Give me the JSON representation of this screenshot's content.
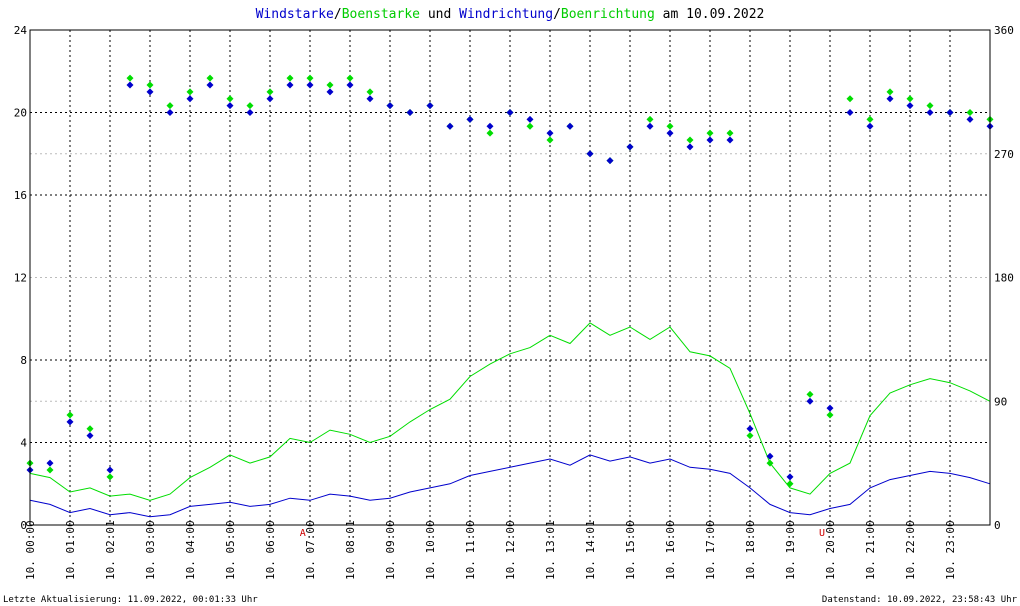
{
  "title": {
    "part1": "Windstarke",
    "sep1": "/",
    "part2": "Boenstarke",
    "mid": " und ",
    "part3": "Windrichtung",
    "sep2": "/",
    "part4": "Boenrichtung",
    "tail": " am 10.09.2022"
  },
  "footer": {
    "left": "Letzte Aktualisierung: 11.09.2022, 00:01:33 Uhr",
    "right": "Datenstand: 10.09.2022, 23:58:43 Uhr"
  },
  "colors": {
    "wind": "#0000cc",
    "gust": "#00dd00",
    "grid": "#000000",
    "marker": "#cc0000"
  },
  "chart_data": {
    "type": "line",
    "grid": true,
    "xlim": [
      0,
      24
    ],
    "ylim_left": [
      0,
      24
    ],
    "ylim_right": [
      0,
      360
    ],
    "left_ticks": [
      "0",
      "4",
      "8",
      "12",
      "16",
      "20",
      "24"
    ],
    "right_ticks": [
      "0",
      "90",
      "180",
      "270",
      "360"
    ],
    "x_ticks": [
      "10. 00:00",
      "10. 01:00",
      "10. 02:01",
      "10. 03:00",
      "10. 04:00",
      "10. 05:00",
      "10. 06:00",
      "10. 07:00",
      "10. 08:01",
      "10. 09:00",
      "10. 10:00",
      "10. 11:00",
      "10. 12:00",
      "10. 13:01",
      "10. 14:01",
      "10. 15:00",
      "10. 16:00",
      "10. 17:00",
      "10. 18:00",
      "10. 19:00",
      "10. 20:00",
      "10. 21:00",
      "10. 22:00",
      "10. 23:00"
    ],
    "markers": [
      {
        "label": "A",
        "hour": 6.82
      },
      {
        "label": "U",
        "hour": 19.8
      }
    ],
    "series": [
      {
        "name": "Windstarke",
        "unit": "left",
        "hours": [
          0,
          0.5,
          1,
          1.5,
          2,
          2.5,
          3,
          3.5,
          4,
          4.5,
          5,
          5.5,
          6,
          6.5,
          7,
          7.5,
          8,
          8.5,
          9,
          9.5,
          10,
          10.5,
          11,
          11.5,
          12,
          12.5,
          13,
          13.5,
          14,
          14.5,
          15,
          15.5,
          16,
          16.5,
          17,
          17.5,
          18,
          18.5,
          19,
          19.5,
          20,
          20.5,
          21,
          21.5,
          22,
          22.5,
          23,
          23.5,
          24
        ],
        "values": [
          1.2,
          1.0,
          0.6,
          0.8,
          0.5,
          0.6,
          0.4,
          0.5,
          0.9,
          1.0,
          1.1,
          0.9,
          1.0,
          1.3,
          1.2,
          1.5,
          1.4,
          1.2,
          1.3,
          1.6,
          1.8,
          2.0,
          2.4,
          2.6,
          2.8,
          3.0,
          3.2,
          2.9,
          3.4,
          3.1,
          3.3,
          3.0,
          3.2,
          2.8,
          2.7,
          2.5,
          1.8,
          1.0,
          0.6,
          0.5,
          0.8,
          1.0,
          1.8,
          2.2,
          2.4,
          2.6,
          2.5,
          2.3,
          2.0
        ]
      },
      {
        "name": "Boenstarke",
        "unit": "left",
        "hours": [
          0,
          0.5,
          1,
          1.5,
          2,
          2.5,
          3,
          3.5,
          4,
          4.5,
          5,
          5.5,
          6,
          6.5,
          7,
          7.5,
          8,
          8.5,
          9,
          9.5,
          10,
          10.5,
          11,
          11.5,
          12,
          12.5,
          13,
          13.5,
          14,
          14.5,
          15,
          15.5,
          16,
          16.5,
          17,
          17.5,
          18,
          18.5,
          19,
          19.5,
          20,
          20.5,
          21,
          21.5,
          22,
          22.5,
          23,
          23.5,
          24
        ],
        "values": [
          2.5,
          2.3,
          1.6,
          1.8,
          1.4,
          1.5,
          1.2,
          1.5,
          2.3,
          2.8,
          3.4,
          3.0,
          3.3,
          4.2,
          4.0,
          4.6,
          4.4,
          4.0,
          4.3,
          5.0,
          5.6,
          6.1,
          7.2,
          7.8,
          8.3,
          8.6,
          9.2,
          8.8,
          9.8,
          9.2,
          9.6,
          9.0,
          9.6,
          8.4,
          8.2,
          7.6,
          5.4,
          3.0,
          1.8,
          1.5,
          2.5,
          3.0,
          5.3,
          6.4,
          6.8,
          7.1,
          6.9,
          6.5,
          6.0
        ]
      },
      {
        "name": "Windrichtung",
        "unit": "right",
        "hours": [
          0,
          0.5,
          1,
          1.5,
          2,
          2.5,
          3,
          3.5,
          4,
          4.5,
          5,
          5.5,
          6,
          6.5,
          7,
          7.5,
          8,
          8.5,
          9,
          9.5,
          10,
          10.5,
          11,
          11.5,
          12,
          12.5,
          13,
          13.5,
          14,
          14.5,
          15,
          15.5,
          16,
          16.5,
          17,
          17.5,
          18,
          18.5,
          19,
          19.5,
          20,
          20.5,
          21,
          21.5,
          22,
          22.5,
          23,
          23.5,
          24
        ],
        "values": [
          40,
          45,
          75,
          65,
          40,
          320,
          315,
          300,
          310,
          320,
          305,
          300,
          310,
          320,
          320,
          315,
          320,
          310,
          305,
          300,
          305,
          290,
          295,
          290,
          300,
          295,
          285,
          290,
          270,
          265,
          275,
          290,
          285,
          275,
          280,
          280,
          70,
          50,
          35,
          90,
          85,
          300,
          290,
          310,
          305,
          300,
          300,
          295,
          290
        ]
      },
      {
        "name": "Boenrichtung",
        "unit": "right",
        "hours": [
          0,
          0.5,
          1,
          1.5,
          2,
          2.5,
          3,
          3.5,
          4,
          4.5,
          5,
          5.5,
          6,
          6.5,
          7,
          7.5,
          8,
          8.5,
          9,
          9.5,
          10,
          10.5,
          11,
          11.5,
          12,
          12.5,
          13,
          13.5,
          14,
          14.5,
          15,
          15.5,
          16,
          16.5,
          17,
          17.5,
          18,
          18.5,
          19,
          19.5,
          20,
          20.5,
          21,
          21.5,
          22,
          22.5,
          23,
          23.5,
          24
        ],
        "values": [
          45,
          40,
          80,
          70,
          35,
          325,
          320,
          305,
          315,
          325,
          310,
          305,
          315,
          325,
          325,
          320,
          325,
          315,
          305,
          300,
          305,
          290,
          295,
          285,
          300,
          290,
          280,
          290,
          270,
          265,
          275,
          295,
          290,
          280,
          285,
          285,
          65,
          45,
          30,
          95,
          80,
          310,
          295,
          315,
          310,
          305,
          300,
          300,
          295
        ]
      }
    ]
  }
}
